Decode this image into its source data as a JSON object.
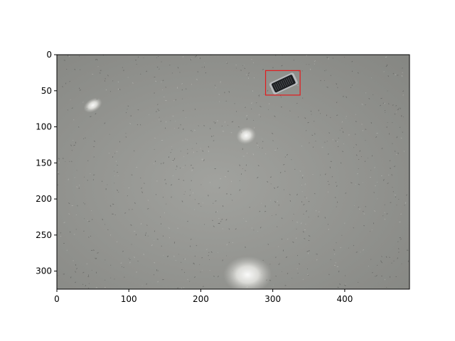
{
  "chart_data": {
    "type": "image",
    "image_extent": {
      "width": 490,
      "height": 325
    },
    "x_ticks": [
      0,
      100,
      200,
      300,
      400
    ],
    "y_ticks": [
      0,
      50,
      100,
      150,
      200,
      250,
      300
    ],
    "xlim": [
      0,
      490
    ],
    "ylim": [
      325,
      0
    ],
    "annotations": [
      {
        "shape": "rectangle",
        "x0": 290,
        "y0": 22,
        "x1": 338,
        "y1": 56,
        "color": "#e31a1c"
      }
    ],
    "scene_objects": [
      {
        "icon": "smartphone-icon",
        "x": 315,
        "y": 40
      },
      {
        "icon": "glare-spot",
        "x": 50,
        "y": 70
      },
      {
        "icon": "glare-spot",
        "x": 263,
        "y": 112
      },
      {
        "icon": "glare-spot",
        "x": 265,
        "y": 305
      }
    ]
  },
  "colors": {
    "floor": "#8e8f8b",
    "floor_light": "#a7a8a4",
    "box": "#e31a1c",
    "phone": "#1d1f22"
  }
}
